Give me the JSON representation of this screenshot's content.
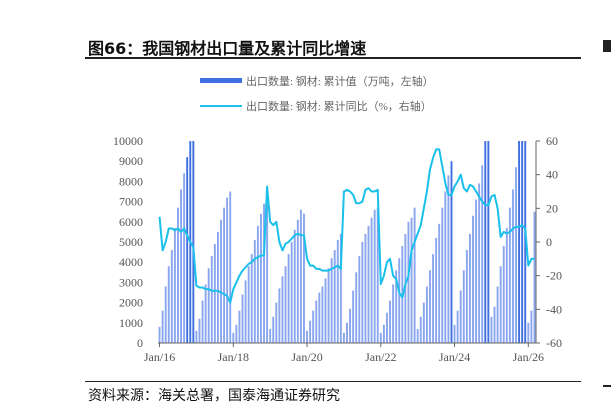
{
  "figure": {
    "title": "图66：我国钢材出口量及累计同比增速",
    "source": "资料来源：海关总署，国泰海通证券研究"
  },
  "colors": {
    "bar": "#3f6fe0",
    "bar_light": "#8aa6ee",
    "line": "#19c0ea",
    "axis": "#666666"
  },
  "chart_data": {
    "type": "bar",
    "series": [
      {
        "name": "出口数量: 钢材: 累计值（万吨，左轴）",
        "type": "bar",
        "axis": "left",
        "x": [
          "2016-01",
          "2016-02",
          "2016-03",
          "2016-04",
          "2016-05",
          "2016-06",
          "2016-07",
          "2016-08",
          "2016-09",
          "2016-10",
          "2016-11",
          "2016-12",
          "2017-01",
          "2017-02",
          "2017-03",
          "2017-04",
          "2017-05",
          "2017-06",
          "2017-07",
          "2017-08",
          "2017-09",
          "2017-10",
          "2017-11",
          "2017-12",
          "2018-01",
          "2018-02",
          "2018-03",
          "2018-04",
          "2018-05",
          "2018-06",
          "2018-07",
          "2018-08",
          "2018-09",
          "2018-10",
          "2018-11",
          "2018-12",
          "2019-01",
          "2019-02",
          "2019-03",
          "2019-04",
          "2019-05",
          "2019-06",
          "2019-07",
          "2019-08",
          "2019-09",
          "2019-10",
          "2019-11",
          "2019-12",
          "2020-01",
          "2020-02",
          "2020-03",
          "2020-04",
          "2020-05",
          "2020-06",
          "2020-07",
          "2020-08",
          "2020-09",
          "2020-10",
          "2020-11",
          "2020-12",
          "2021-01",
          "2021-02",
          "2021-03",
          "2021-04",
          "2021-05",
          "2021-06",
          "2021-07",
          "2021-08",
          "2021-09",
          "2021-10",
          "2021-11",
          "2021-12",
          "2022-01",
          "2022-02",
          "2022-03",
          "2022-04",
          "2022-05",
          "2022-06",
          "2022-07",
          "2022-08",
          "2022-09",
          "2022-10",
          "2022-11",
          "2022-12",
          "2023-01",
          "2023-02",
          "2023-03",
          "2023-04",
          "2023-05",
          "2023-06",
          "2023-07",
          "2023-08",
          "2023-09",
          "2023-10",
          "2023-11",
          "2023-12",
          "2024-01",
          "2024-02",
          "2024-03",
          "2024-04",
          "2024-05",
          "2024-06",
          "2024-07",
          "2024-08",
          "2024-09",
          "2024-10",
          "2024-11",
          "2024-12",
          "2025-01",
          "2025-02",
          "2025-03",
          "2025-04",
          "2025-05",
          "2025-06",
          "2025-07",
          "2025-08",
          "2025-09",
          "2025-10",
          "2025-11",
          "2025-12",
          "2026-01",
          "2026-02",
          "2026-03"
        ],
        "values": [
          800,
          1600,
          2800,
          3800,
          4600,
          5700,
          6700,
          7600,
          8400,
          9200,
          10000,
          10000,
          600,
          1200,
          2100,
          2900,
          3700,
          4300,
          4900,
          5500,
          6100,
          6700,
          7200,
          7500,
          500,
          900,
          1600,
          2400,
          3100,
          3800,
          4400,
          5100,
          5800,
          6400,
          6900,
          6900,
          700,
          1300,
          2000,
          2700,
          3300,
          3800,
          4400,
          5000,
          5600,
          6100,
          6600,
          6400,
          600,
          1100,
          1600,
          2100,
          2500,
          2800,
          3200,
          3700,
          4200,
          4600,
          5100,
          5400,
          500,
          1000,
          1700,
          2600,
          3500,
          4300,
          5000,
          5400,
          5800,
          6200,
          6600,
          6700,
          500,
          900,
          1500,
          2100,
          2900,
          3600,
          4200,
          4800,
          5400,
          6000,
          6200,
          6700,
          700,
          1300,
          2000,
          2800,
          3600,
          4400,
          5200,
          5900,
          6700,
          7500,
          8300,
          9000,
          900,
          1600,
          2600,
          3600,
          4600,
          5400,
          6300,
          7100,
          7900,
          8800,
          10000,
          10000,
          1300,
          1800,
          2800,
          3800,
          4800,
          5700,
          6700,
          7600,
          8700,
          10000,
          10000,
          10000,
          1000,
          1600,
          6500
        ]
      },
      {
        "name": "出口数量: 钢材: 累计同比（%，右轴）",
        "type": "line",
        "axis": "right",
        "x": [
          "2016-01",
          "2016-02",
          "2016-03",
          "2016-04",
          "2016-05",
          "2016-06",
          "2016-07",
          "2016-08",
          "2016-09",
          "2016-10",
          "2016-11",
          "2016-12",
          "2017-01",
          "2017-02",
          "2017-03",
          "2017-04",
          "2017-05",
          "2017-06",
          "2017-07",
          "2017-08",
          "2017-09",
          "2017-10",
          "2017-11",
          "2017-12",
          "2018-01",
          "2018-02",
          "2018-03",
          "2018-04",
          "2018-05",
          "2018-06",
          "2018-07",
          "2018-08",
          "2018-09",
          "2018-10",
          "2018-11",
          "2018-12",
          "2019-01",
          "2019-02",
          "2019-03",
          "2019-04",
          "2019-05",
          "2019-06",
          "2019-07",
          "2019-08",
          "2019-09",
          "2019-10",
          "2019-11",
          "2019-12",
          "2020-01",
          "2020-02",
          "2020-03",
          "2020-04",
          "2020-05",
          "2020-06",
          "2020-07",
          "2020-08",
          "2020-09",
          "2020-10",
          "2020-11",
          "2020-12",
          "2021-01",
          "2021-02",
          "2021-03",
          "2021-04",
          "2021-05",
          "2021-06",
          "2021-07",
          "2021-08",
          "2021-09",
          "2021-10",
          "2021-11",
          "2021-12",
          "2022-01",
          "2022-02",
          "2022-03",
          "2022-04",
          "2022-05",
          "2022-06",
          "2022-07",
          "2022-08",
          "2022-09",
          "2022-10",
          "2022-11",
          "2022-12",
          "2023-01",
          "2023-02",
          "2023-03",
          "2023-04",
          "2023-05",
          "2023-06",
          "2023-07",
          "2023-08",
          "2023-09",
          "2023-10",
          "2023-11",
          "2023-12",
          "2024-01",
          "2024-02",
          "2024-03",
          "2024-04",
          "2024-05",
          "2024-06",
          "2024-07",
          "2024-08",
          "2024-09",
          "2024-10",
          "2024-11",
          "2024-12",
          "2025-01",
          "2025-02",
          "2025-03",
          "2025-04",
          "2025-05",
          "2025-06",
          "2025-07",
          "2025-08",
          "2025-09",
          "2025-10",
          "2025-11",
          "2025-12",
          "2026-01",
          "2026-02",
          "2026-03"
        ],
        "values": [
          15,
          -5,
          0,
          8,
          8,
          7,
          8,
          6,
          8,
          4,
          0,
          -3,
          -26,
          -27,
          -27,
          -28,
          -28,
          -29,
          -29,
          -29,
          -30,
          -31,
          -32,
          -36,
          -28,
          -24,
          -20,
          -17,
          -15,
          -13,
          -12,
          -10,
          -9,
          -8,
          -8,
          33,
          12,
          10,
          12,
          0,
          -5,
          -1,
          0,
          2,
          4,
          5,
          4,
          4,
          -10,
          -14,
          -14,
          -16,
          -16,
          -17,
          -17,
          -17,
          -16,
          -15,
          -14,
          -16,
          30,
          31,
          30,
          28,
          23,
          23,
          24,
          31,
          32,
          30,
          30,
          31,
          -25,
          -20,
          -12,
          -10,
          -20,
          -22,
          -30,
          -33,
          -25,
          -20,
          -5,
          0,
          5,
          10,
          20,
          30,
          43,
          50,
          55,
          55,
          45,
          35,
          28,
          28,
          33,
          36,
          40,
          32,
          30,
          34,
          33,
          30,
          27,
          24,
          22,
          22,
          27,
          28,
          20,
          3,
          6,
          5,
          6,
          8,
          9,
          9,
          10,
          8,
          -14,
          -10,
          -10
        ]
      }
    ],
    "left_axis": {
      "ticks": [
        "10000",
        "9000",
        "8000",
        "7000",
        "6000",
        "5000",
        "4000",
        "3000",
        "2000",
        "1000",
        "0"
      ],
      "ylim": [
        0,
        10000
      ]
    },
    "right_axis": {
      "ticks": [
        "60",
        "40",
        "20",
        "0",
        "-20",
        "-40",
        "-60"
      ],
      "ylim": [
        -60,
        60
      ]
    },
    "x_ticks": [
      "Jan/16",
      "Jan/18",
      "Jan/20",
      "Jan/22",
      "Jan/24",
      "Jan/26"
    ],
    "legend": [
      "出口数量: 钢材: 累计值（万吨，左轴）",
      "出口数量: 钢材: 累计同比（%，右轴）"
    ],
    "grid": false,
    "legend_position": "top"
  }
}
